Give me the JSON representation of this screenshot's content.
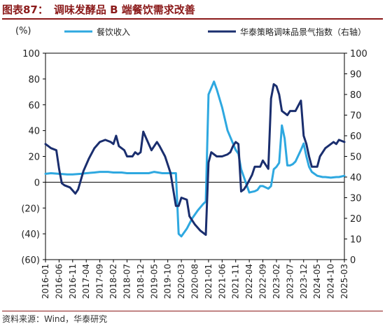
{
  "figure": {
    "title_label": "图表87：",
    "title_text": "调味发酵品 B 端餐饮需求改善",
    "source": "资料来源：Wind，华泰研究"
  },
  "chart_data": {
    "type": "line",
    "left_unit_label": "(%)",
    "legend_position": "top",
    "grid": false,
    "x_tick_labels": [
      "2016-01",
      "2016-06",
      "2016-11",
      "2017-04",
      "2017-09",
      "2018-02",
      "2018-07",
      "2018-12",
      "2019-05",
      "2019-10",
      "2020-03",
      "2020-08",
      "2021-01",
      "2021-06",
      "2021-11",
      "2022-04",
      "2022-09",
      "2023-02",
      "2023-07",
      "2023-12",
      "2024-05",
      "2024-10",
      "2025-03"
    ],
    "y_left": {
      "min": -60,
      "max": 100,
      "ticks": [
        100,
        80,
        60,
        40,
        20,
        0,
        -20,
        -40,
        -60
      ],
      "tick_labels": [
        "100",
        "80",
        "60",
        "40",
        "20",
        "0",
        "(20)",
        "(40)",
        "(60)"
      ]
    },
    "y_right": {
      "min": 0,
      "max": 100,
      "ticks": [
        100,
        90,
        80,
        70,
        60,
        50,
        40,
        30,
        20,
        10,
        0
      ],
      "tick_labels": [
        "100",
        "90",
        "80",
        "70",
        "60",
        "50",
        "40",
        "30",
        "20",
        "10",
        "0"
      ]
    },
    "series": [
      {
        "name": "餐饮收入",
        "axis": "left",
        "color": "#2ea8e0",
        "points": [
          [
            "2016-01",
            6.5
          ],
          [
            "2016-03",
            7
          ],
          [
            "2016-06",
            6.5
          ],
          [
            "2016-09",
            6
          ],
          [
            "2016-11",
            6
          ],
          [
            "2017-02",
            6.5
          ],
          [
            "2017-04",
            7
          ],
          [
            "2017-07",
            7.5
          ],
          [
            "2017-09",
            8
          ],
          [
            "2017-12",
            8
          ],
          [
            "2018-02",
            7.5
          ],
          [
            "2018-05",
            7.5
          ],
          [
            "2018-07",
            7
          ],
          [
            "2018-10",
            7
          ],
          [
            "2018-12",
            7
          ],
          [
            "2019-03",
            7
          ],
          [
            "2019-05",
            8
          ],
          [
            "2019-08",
            7
          ],
          [
            "2019-10",
            7
          ],
          [
            "2020-01",
            7
          ],
          [
            "2020-02",
            -40
          ],
          [
            "2020-03",
            -42
          ],
          [
            "2020-05",
            -36
          ],
          [
            "2020-07",
            -28
          ],
          [
            "2020-09",
            -22
          ],
          [
            "2020-11",
            -17
          ],
          [
            "2020-12",
            -15
          ],
          [
            "2021-01",
            68
          ],
          [
            "2021-03",
            78
          ],
          [
            "2021-04",
            72
          ],
          [
            "2021-06",
            58
          ],
          [
            "2021-08",
            40
          ],
          [
            "2021-09",
            35
          ],
          [
            "2021-11",
            25
          ],
          [
            "2021-12",
            22
          ],
          [
            "2022-01",
            10
          ],
          [
            "2022-03",
            -2
          ],
          [
            "2022-04",
            -8
          ],
          [
            "2022-06",
            -7
          ],
          [
            "2022-07",
            -6
          ],
          [
            "2022-08",
            -3
          ],
          [
            "2022-09",
            -3
          ],
          [
            "2022-11",
            -5
          ],
          [
            "2022-12",
            -3
          ],
          [
            "2023-01",
            10
          ],
          [
            "2023-02",
            12
          ],
          [
            "2023-03",
            15
          ],
          [
            "2023-04",
            44
          ],
          [
            "2023-05",
            34
          ],
          [
            "2023-06",
            13
          ],
          [
            "2023-07",
            13
          ],
          [
            "2023-08",
            14
          ],
          [
            "2023-09",
            16
          ],
          [
            "2023-11",
            25
          ],
          [
            "2023-12",
            30
          ],
          [
            "2024-01",
            20
          ],
          [
            "2024-02",
            12
          ],
          [
            "2024-03",
            8
          ],
          [
            "2024-05",
            5
          ],
          [
            "2024-07",
            4
          ],
          [
            "2024-08",
            4
          ],
          [
            "2024-10",
            3.5
          ],
          [
            "2024-12",
            4
          ],
          [
            "2025-01",
            4
          ],
          [
            "2025-03",
            5
          ]
        ]
      },
      {
        "name": "华泰策略调味品景气指数（右轴）",
        "axis": "right",
        "color": "#1a2e6e",
        "points": [
          [
            "2016-01",
            56
          ],
          [
            "2016-03",
            54
          ],
          [
            "2016-05",
            53
          ],
          [
            "2016-06",
            44
          ],
          [
            "2016-07",
            37
          ],
          [
            "2016-08",
            36
          ],
          [
            "2016-10",
            35
          ],
          [
            "2016-12",
            32
          ],
          [
            "2017-01",
            34
          ],
          [
            "2017-03",
            43
          ],
          [
            "2017-05",
            49
          ],
          [
            "2017-07",
            54
          ],
          [
            "2017-09",
            57
          ],
          [
            "2017-11",
            58
          ],
          [
            "2018-01",
            57
          ],
          [
            "2018-02",
            56
          ],
          [
            "2018-03",
            60
          ],
          [
            "2018-04",
            55
          ],
          [
            "2018-06",
            53
          ],
          [
            "2018-07",
            50
          ],
          [
            "2018-09",
            50
          ],
          [
            "2018-10",
            52
          ],
          [
            "2018-11",
            51
          ],
          [
            "2018-12",
            52
          ],
          [
            "2019-01",
            62
          ],
          [
            "2019-02",
            59
          ],
          [
            "2019-04",
            53
          ],
          [
            "2019-05",
            55
          ],
          [
            "2019-06",
            57
          ],
          [
            "2019-07",
            55
          ],
          [
            "2019-09",
            50
          ],
          [
            "2019-10",
            46
          ],
          [
            "2019-11",
            42
          ],
          [
            "2020-01",
            26
          ],
          [
            "2020-02",
            26
          ],
          [
            "2020-03",
            30
          ],
          [
            "2020-05",
            29
          ],
          [
            "2020-06",
            21
          ],
          [
            "2020-08",
            17
          ],
          [
            "2020-10",
            14
          ],
          [
            "2020-12",
            12
          ],
          [
            "2021-01",
            47
          ],
          [
            "2021-02",
            52
          ],
          [
            "2021-04",
            50
          ],
          [
            "2021-06",
            50
          ],
          [
            "2021-08",
            51
          ],
          [
            "2021-09",
            52
          ],
          [
            "2021-10",
            55
          ],
          [
            "2021-11",
            57
          ],
          [
            "2021-12",
            56
          ],
          [
            "2022-01",
            33
          ],
          [
            "2022-02",
            34
          ],
          [
            "2022-03",
            36
          ],
          [
            "2022-05",
            41
          ],
          [
            "2022-06",
            45
          ],
          [
            "2022-08",
            45
          ],
          [
            "2022-09",
            48
          ],
          [
            "2022-10",
            46
          ],
          [
            "2022-11",
            44
          ],
          [
            "2022-12",
            78
          ],
          [
            "2023-01",
            85
          ],
          [
            "2023-02",
            84
          ],
          [
            "2023-03",
            80
          ],
          [
            "2023-04",
            72
          ],
          [
            "2023-06",
            70
          ],
          [
            "2023-07",
            72
          ],
          [
            "2023-09",
            72
          ],
          [
            "2023-11",
            77
          ],
          [
            "2023-12",
            60
          ],
          [
            "2024-01",
            56
          ],
          [
            "2024-02",
            50
          ],
          [
            "2024-03",
            45
          ],
          [
            "2024-05",
            45
          ],
          [
            "2024-06",
            50
          ],
          [
            "2024-08",
            54
          ],
          [
            "2024-09",
            55
          ],
          [
            "2024-11",
            57
          ],
          [
            "2024-12",
            56
          ],
          [
            "2025-01",
            58
          ],
          [
            "2025-03",
            57
          ]
        ]
      }
    ]
  }
}
